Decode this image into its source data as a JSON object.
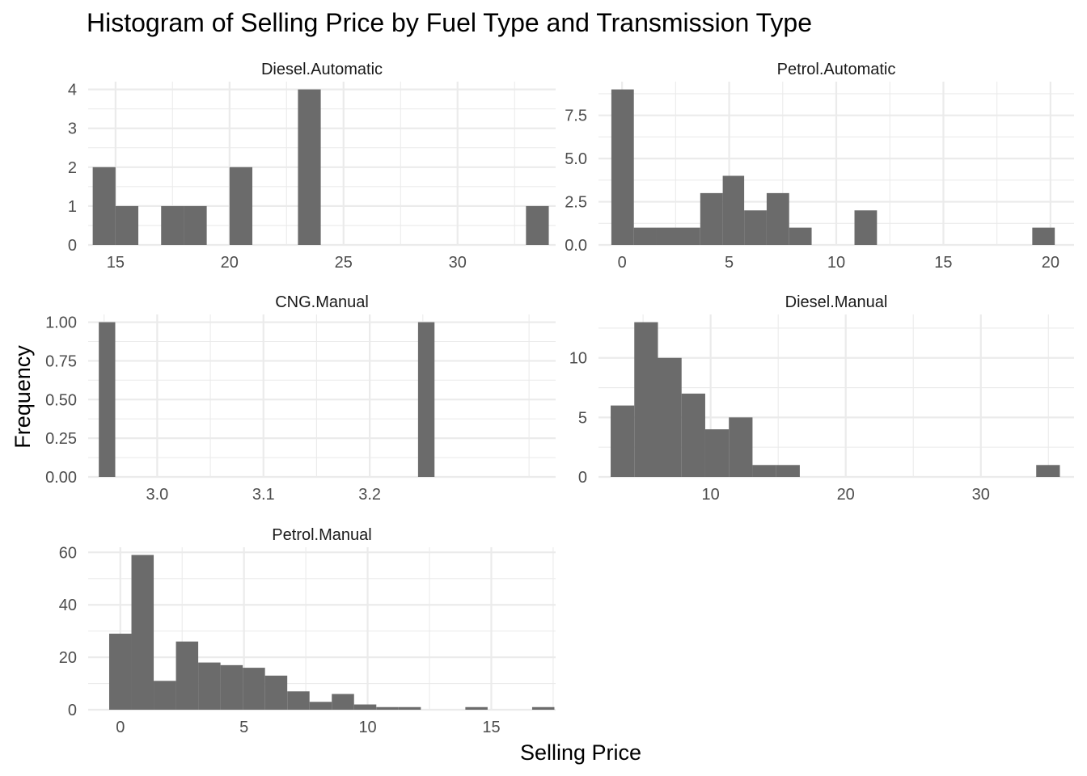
{
  "chart_data": {
    "type": "bar",
    "title": "Histogram of Selling Price by Fuel Type and Transmission Type",
    "xlabel": "Selling Price",
    "ylabel": "Frequency",
    "bar_color": "#6b6b6b",
    "grid_color": "#ebebeb",
    "grid": true,
    "panels": [
      {
        "name": "Diesel.Automatic",
        "xlim": [
          13.8,
          34.3
        ],
        "ylim": [
          0,
          4.2
        ],
        "xticks": [
          15,
          20,
          25,
          30
        ],
        "xtick_labels": [
          "15",
          "20",
          "25",
          "30"
        ],
        "yticks": [
          0,
          1,
          2,
          3,
          4
        ],
        "ytick_labels": [
          "0",
          "1",
          "2",
          "3",
          "4"
        ],
        "bins": [
          {
            "x0": 14.0,
            "x1": 15.0,
            "count": 2
          },
          {
            "x0": 15.0,
            "x1": 16.0,
            "count": 1
          },
          {
            "x0": 17.0,
            "x1": 18.0,
            "count": 1
          },
          {
            "x0": 18.0,
            "x1": 19.0,
            "count": 1
          },
          {
            "x0": 20.0,
            "x1": 21.0,
            "count": 2
          },
          {
            "x0": 23.0,
            "x1": 24.0,
            "count": 4
          },
          {
            "x0": 33.0,
            "x1": 34.0,
            "count": 1
          }
        ]
      },
      {
        "name": "Petrol.Automatic",
        "xlim": [
          -1.1,
          21.1
        ],
        "ylim": [
          0,
          9.45
        ],
        "xticks": [
          0,
          5,
          10,
          15,
          20
        ],
        "xtick_labels": [
          "0",
          "5",
          "10",
          "15",
          "20"
        ],
        "yticks": [
          0,
          2.5,
          5,
          7.5
        ],
        "ytick_labels": [
          "0.0",
          "2.5",
          "5.0",
          "7.5"
        ],
        "bins": [
          {
            "x0": -0.5,
            "x1": 0.55,
            "count": 9
          },
          {
            "x0": 0.55,
            "x1": 1.6,
            "count": 1
          },
          {
            "x0": 1.6,
            "x1": 2.6,
            "count": 1
          },
          {
            "x0": 2.6,
            "x1": 3.65,
            "count": 1
          },
          {
            "x0": 3.65,
            "x1": 4.7,
            "count": 3
          },
          {
            "x0": 4.7,
            "x1": 5.7,
            "count": 4
          },
          {
            "x0": 5.7,
            "x1": 6.75,
            "count": 2
          },
          {
            "x0": 6.75,
            "x1": 7.8,
            "count": 3
          },
          {
            "x0": 7.8,
            "x1": 8.85,
            "count": 1
          },
          {
            "x0": 10.85,
            "x1": 11.9,
            "count": 2
          },
          {
            "x0": 19.15,
            "x1": 20.2,
            "count": 1
          }
        ]
      },
      {
        "name": "CNG.Manual",
        "xlim": [
          2.935,
          3.375
        ],
        "ylim": [
          0,
          1.05
        ],
        "xticks": [
          3.0,
          3.1,
          3.2
        ],
        "xtick_labels": [
          "3.0",
          "3.1",
          "3.2"
        ],
        "yticks": [
          0,
          0.25,
          0.5,
          0.75,
          1.0
        ],
        "ytick_labels": [
          "0.00",
          "0.25",
          "0.50",
          "0.75",
          "1.00"
        ],
        "bins": [
          {
            "x0": 2.945,
            "x1": 2.9605,
            "count": 1
          },
          {
            "x0": 3.2455,
            "x1": 3.261,
            "count": 1
          }
        ]
      },
      {
        "name": "Diesel.Manual",
        "xlim": [
          1.7,
          36.9
        ],
        "ylim": [
          0,
          13.65
        ],
        "xticks": [
          10,
          20,
          30
        ],
        "xtick_labels": [
          "10",
          "20",
          "30"
        ],
        "yticks": [
          0,
          5,
          10
        ],
        "ytick_labels": [
          "0",
          "5",
          "10"
        ],
        "bins": [
          {
            "x0": 2.6,
            "x1": 4.35,
            "count": 6
          },
          {
            "x0": 4.35,
            "x1": 6.1,
            "count": 13
          },
          {
            "x0": 6.1,
            "x1": 7.85,
            "count": 10
          },
          {
            "x0": 7.85,
            "x1": 9.6,
            "count": 7
          },
          {
            "x0": 9.6,
            "x1": 11.35,
            "count": 4
          },
          {
            "x0": 11.35,
            "x1": 13.1,
            "count": 5
          },
          {
            "x0": 13.1,
            "x1": 14.85,
            "count": 1
          },
          {
            "x0": 14.85,
            "x1": 16.6,
            "count": 1
          },
          {
            "x0": 34.1,
            "x1": 35.85,
            "count": 1
          }
        ]
      },
      {
        "name": "Petrol.Manual",
        "xlim": [
          -1.3,
          17.6
        ],
        "ylim": [
          0,
          61.95
        ],
        "xticks": [
          0,
          5,
          10,
          15
        ],
        "xtick_labels": [
          "0",
          "5",
          "10",
          "15"
        ],
        "yticks": [
          0,
          20,
          40,
          60
        ],
        "ytick_labels": [
          "0",
          "20",
          "40",
          "60"
        ],
        "bins": [
          {
            "x0": -0.45,
            "x1": 0.45,
            "count": 29
          },
          {
            "x0": 0.45,
            "x1": 1.35,
            "count": 59
          },
          {
            "x0": 1.35,
            "x1": 2.25,
            "count": 11
          },
          {
            "x0": 2.25,
            "x1": 3.15,
            "count": 26
          },
          {
            "x0": 3.15,
            "x1": 4.05,
            "count": 18
          },
          {
            "x0": 4.05,
            "x1": 4.95,
            "count": 17
          },
          {
            "x0": 4.95,
            "x1": 5.85,
            "count": 16
          },
          {
            "x0": 5.85,
            "x1": 6.75,
            "count": 13
          },
          {
            "x0": 6.75,
            "x1": 7.65,
            "count": 7
          },
          {
            "x0": 7.65,
            "x1": 8.55,
            "count": 3
          },
          {
            "x0": 8.55,
            "x1": 9.45,
            "count": 6
          },
          {
            "x0": 9.45,
            "x1": 10.35,
            "count": 2
          },
          {
            "x0": 10.35,
            "x1": 11.25,
            "count": 1
          },
          {
            "x0": 11.25,
            "x1": 12.15,
            "count": 1
          },
          {
            "x0": 13.95,
            "x1": 14.85,
            "count": 1
          },
          {
            "x0": 16.65,
            "x1": 17.55,
            "count": 1
          }
        ]
      }
    ]
  }
}
